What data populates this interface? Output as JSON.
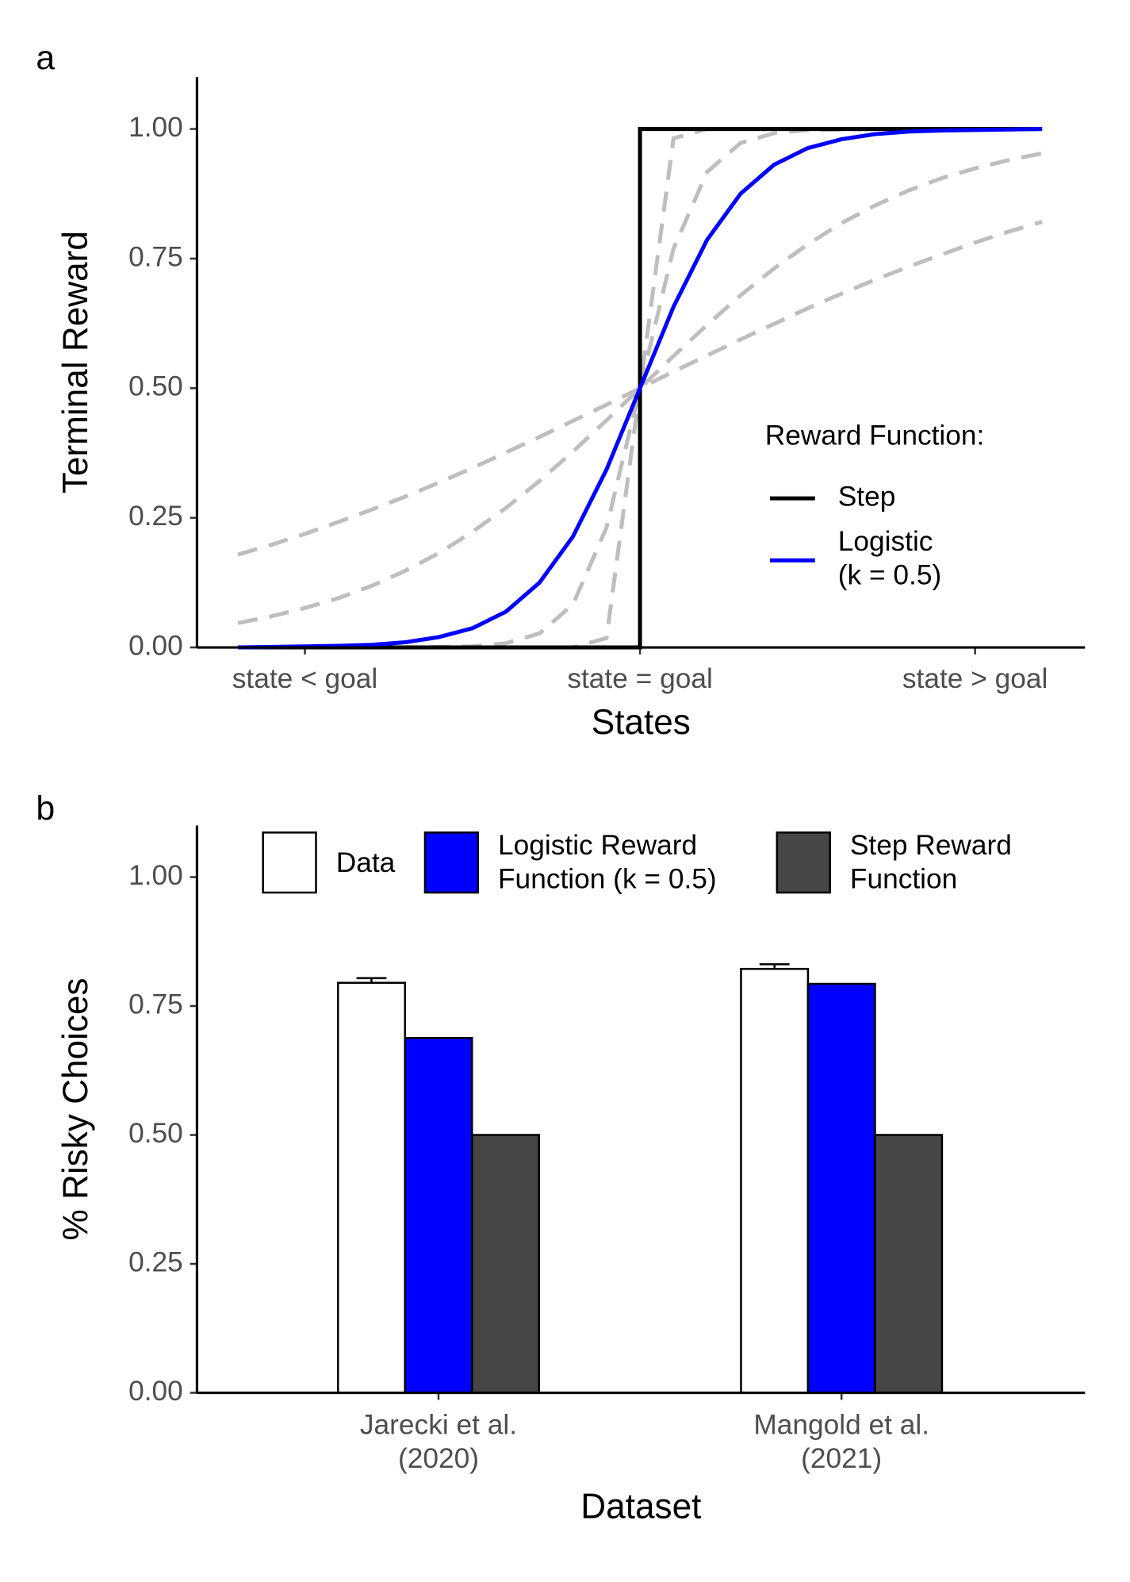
{
  "chart_data": [
    {
      "type": "line",
      "panel_label": "a",
      "ylabel": "Terminal Reward",
      "xlabel": "States",
      "legend_title": "Reward Function:",
      "x": [
        -1.2,
        -1.1,
        -1.0,
        -0.9,
        -0.8,
        -0.7,
        -0.6,
        -0.5,
        -0.4,
        -0.3,
        -0.2,
        -0.1,
        0,
        0.1,
        0.2,
        0.3,
        0.4,
        0.5,
        0.6,
        0.7,
        0.8,
        0.9,
        1.0,
        1.1,
        1.2
      ],
      "xlim": [
        -1.322,
        1.328
      ],
      "xticks": [
        {
          "value": -1,
          "label": "state < goal"
        },
        {
          "value": 0,
          "label": "state = goal"
        },
        {
          "value": 1,
          "label": "state > goal"
        }
      ],
      "ylim": [
        0,
        1.1
      ],
      "yticks": [
        {
          "value": 0,
          "label": "0.00"
        },
        {
          "value": 0.25,
          "label": "0.25"
        },
        {
          "value": 0.5,
          "label": "0.50"
        },
        {
          "value": 0.75,
          "label": "0.75"
        },
        {
          "value": 1,
          "label": "1.00"
        }
      ],
      "series": [
        {
          "color": "#bebebe",
          "dashed": true,
          "values": [
            0.179,
            0.198,
            0.219,
            0.242,
            0.266,
            0.291,
            0.318,
            0.346,
            0.376,
            0.406,
            0.437,
            0.468,
            0.5,
            0.532,
            0.563,
            0.594,
            0.624,
            0.654,
            0.682,
            0.709,
            0.734,
            0.758,
            0.781,
            0.802,
            0.821
          ]
        },
        {
          "color": "#bebebe",
          "dashed": true,
          "values": [
            0.047,
            0.06,
            0.076,
            0.095,
            0.119,
            0.148,
            0.182,
            0.223,
            0.269,
            0.321,
            0.378,
            0.438,
            0.5,
            0.562,
            0.622,
            0.679,
            0.731,
            0.777,
            0.818,
            0.852,
            0.881,
            0.905,
            0.924,
            0.94,
            0.953
          ]
        },
        {
          "color": "#bebebe",
          "dashed": true,
          "values": [
            0,
            0,
            0,
            0,
            0,
            0,
            0.001,
            0.002,
            0.008,
            0.027,
            0.083,
            0.231,
            0.5,
            0.769,
            0.917,
            0.973,
            0.992,
            0.998,
            0.999,
            1,
            1,
            1,
            1,
            1,
            1
          ]
        },
        {
          "color": "#bebebe",
          "dashed": true,
          "values": [
            0,
            0,
            0,
            0,
            0,
            0,
            0,
            0,
            0,
            0,
            0,
            0.018,
            0.5,
            0.982,
            1,
            1,
            1,
            1,
            1,
            1,
            1,
            1,
            1,
            1,
            1
          ]
        },
        {
          "name": "Step",
          "color": "#000000",
          "x": [
            -1.2,
            0,
            0,
            1.2
          ],
          "values": [
            0,
            0,
            1,
            1
          ]
        },
        {
          "name": "Logistic\n(k = 0.5)",
          "color": "#0000ff",
          "values": [
            0,
            0.001,
            0.002,
            0.003,
            0.005,
            0.01,
            0.02,
            0.037,
            0.069,
            0.125,
            0.214,
            0.343,
            0.5,
            0.657,
            0.786,
            0.875,
            0.931,
            0.963,
            0.98,
            0.99,
            0.995,
            0.997,
            0.998,
            0.999,
            1
          ]
        }
      ]
    },
    {
      "type": "bar",
      "panel_label": "b",
      "ylabel": "% Risky Choices",
      "xlabel": "Dataset",
      "categories": [
        "Jarecki et al.\n(2020)",
        "Mangold et al.\n(2021)"
      ],
      "ylim": [
        0,
        1.1
      ],
      "yticks": [
        {
          "value": 0,
          "label": "0.00"
        },
        {
          "value": 0.25,
          "label": "0.25"
        },
        {
          "value": 0.5,
          "label": "0.50"
        },
        {
          "value": 0.75,
          "label": "0.75"
        },
        {
          "value": 1,
          "label": "1.00"
        }
      ],
      "series": [
        {
          "name": "Data",
          "color": "#ffffff",
          "values": [
            0.795,
            0.822
          ],
          "errors": [
            0.009,
            0.009
          ]
        },
        {
          "name": "Logistic Reward\nFunction (k = 0.5)",
          "color": "#0000ff",
          "values": [
            0.688,
            0.793
          ]
        },
        {
          "name": "Step Reward\nFunction",
          "color": "#464646",
          "values": [
            0.5,
            0.5
          ]
        }
      ]
    }
  ]
}
